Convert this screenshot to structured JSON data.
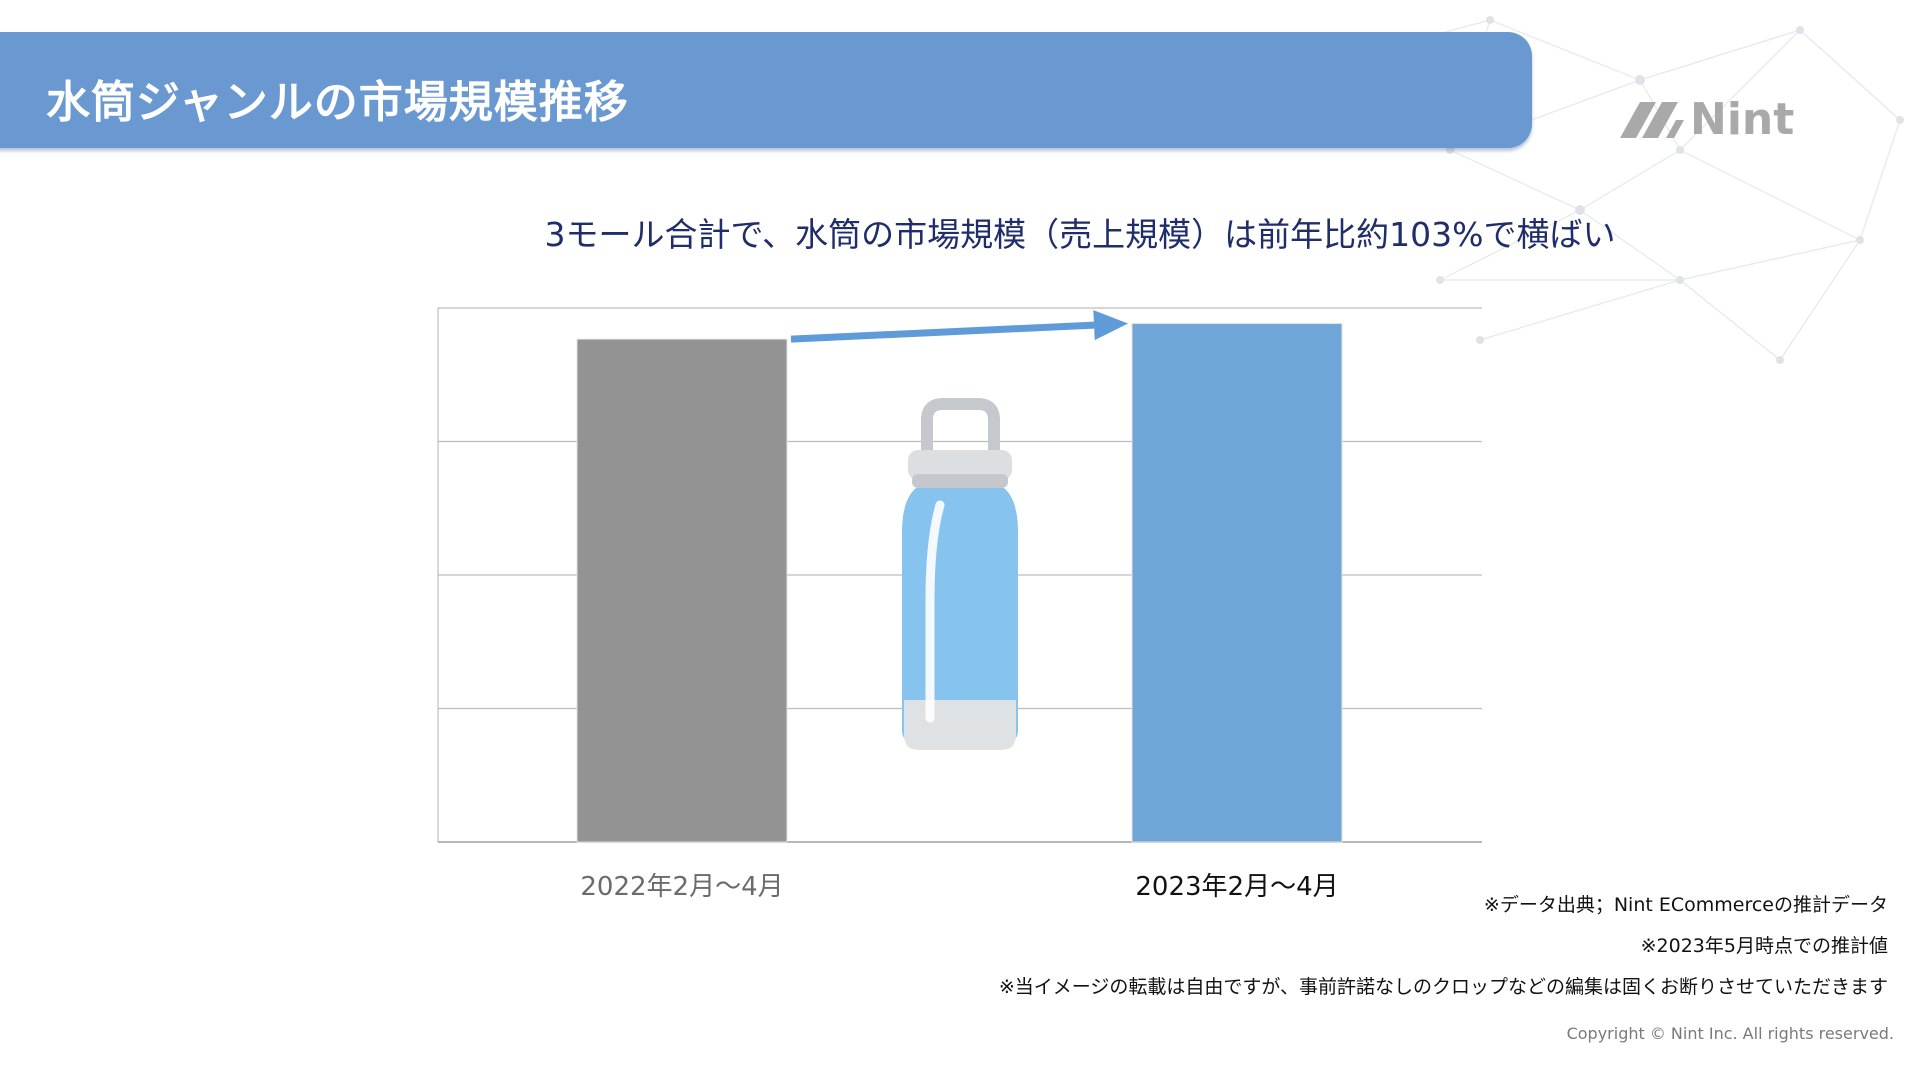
{
  "header": {
    "title": "水筒ジャンルの市場規模推移"
  },
  "logo": {
    "text": "Nint"
  },
  "subtitle": "3モール合計で、水筒の市場規模（売上規模）は前年比約103%で横ばい",
  "chart_data": {
    "type": "bar",
    "categories": [
      "2022年2月〜4月",
      "2023年2月〜4月"
    ],
    "values": [
      97,
      100
    ],
    "ylim": [
      0,
      103
    ],
    "grid": true,
    "colors": [
      "#939393",
      "#70a5d8"
    ],
    "arrow_color": "#5e9bd8"
  },
  "notes": [
    "※データ出典；Nint ECommerceの推計データ",
    "※2023年5月時点での推計値",
    "※当イメージの転載は自由ですが、事前許諾なしのクロップなどの編集は固くお断りさせていただきます"
  ],
  "copyright": "Copyright © Nint Inc. All rights reserved."
}
